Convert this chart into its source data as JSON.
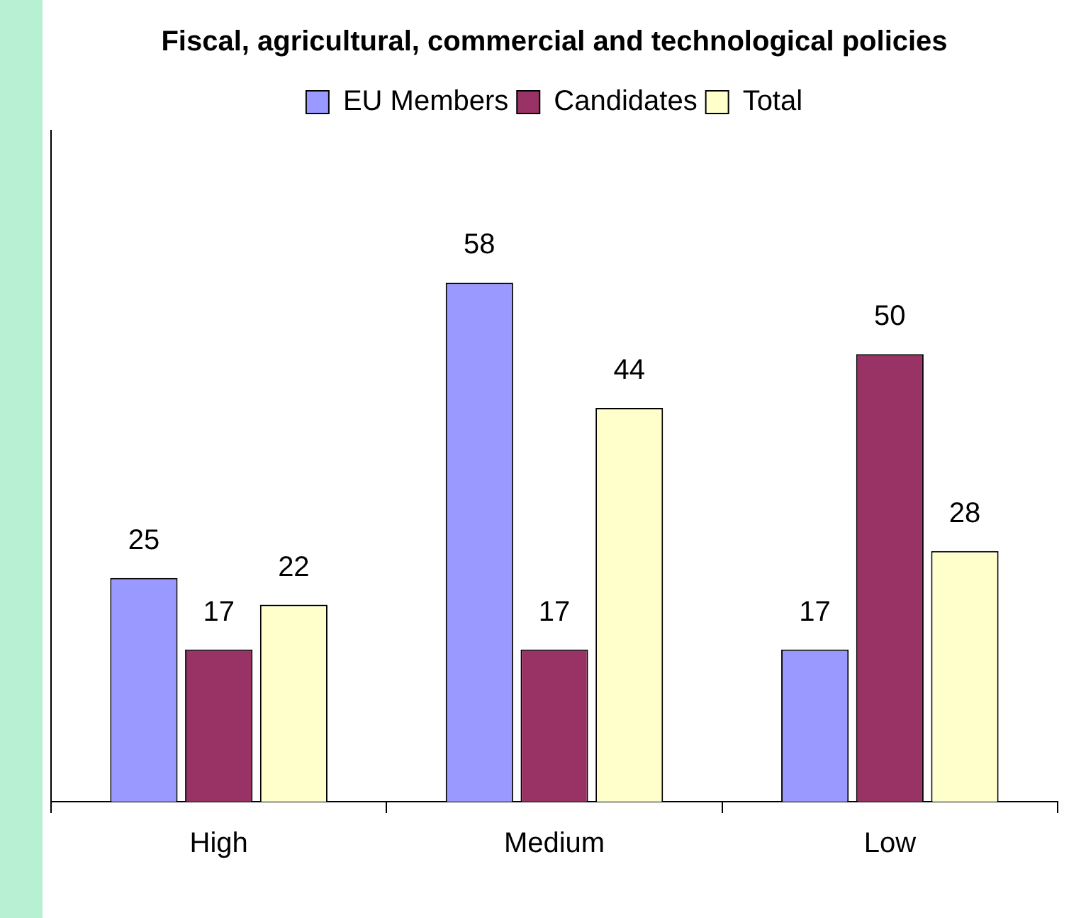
{
  "chart_data": {
    "type": "bar",
    "title": "Fiscal, agricultural, commercial and technological policies",
    "categories": [
      "High",
      "Medium",
      "Low"
    ],
    "series": [
      {
        "name": "EU Members",
        "color": "#9999ff",
        "values": [
          25,
          58,
          17
        ]
      },
      {
        "name": "Candidates",
        "color": "#993366",
        "values": [
          17,
          17,
          50
        ]
      },
      {
        "name": "Total",
        "color": "#ffffcc",
        "values": [
          22,
          44,
          28
        ]
      }
    ],
    "ylim": [
      0,
      75
    ],
    "tick_labels": "x",
    "data_labels": true,
    "legend": "top",
    "grid": false
  }
}
